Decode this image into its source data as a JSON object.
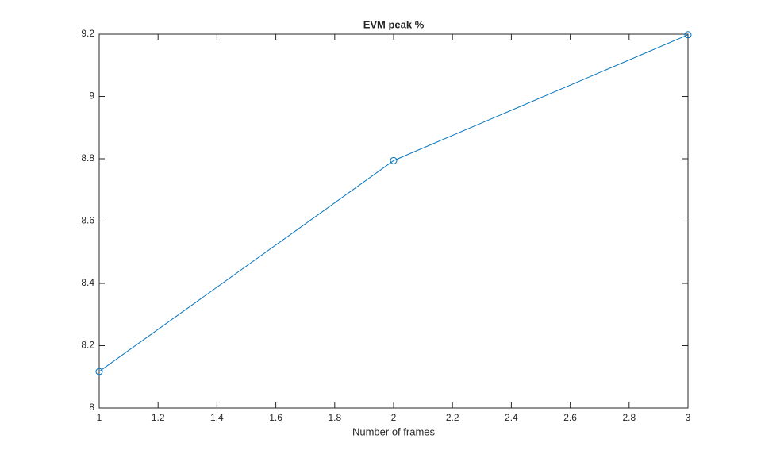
{
  "chart_data": {
    "type": "line",
    "title": "EVM peak %",
    "xlabel": "Number of frames",
    "x": [
      1,
      2,
      3
    ],
    "series": [
      {
        "name": "EVM peak",
        "color": "#0072bd",
        "values": [
          8.117,
          8.794,
          9.198
        ]
      }
    ],
    "xlim": [
      1,
      3
    ],
    "xticks": [
      1,
      1.2,
      1.4,
      1.6,
      1.8,
      2,
      2.2,
      2.4,
      2.6,
      2.8,
      3
    ],
    "ylim": [
      8,
      9.2
    ],
    "yticks": [
      8,
      8.2,
      8.4,
      8.6,
      8.8,
      9,
      9.2
    ],
    "grid": false,
    "markers": "circle"
  }
}
